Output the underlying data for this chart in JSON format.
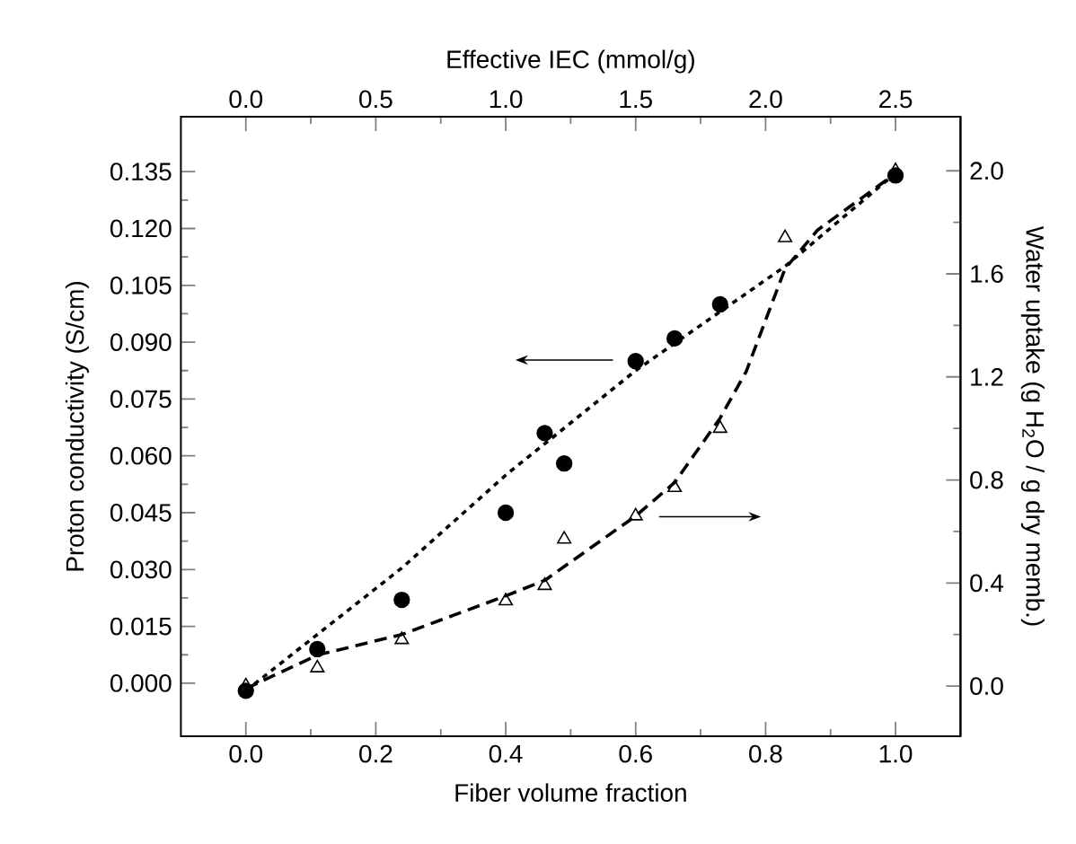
{
  "chart_data": {
    "type": "scatter",
    "xlabel": "Fiber volume fraction",
    "ylabel": "Proton conductivity (S/cm)",
    "y2label": "Water uptake (g H$_{2}$O / g dry memb.)",
    "x2label": "Effective IEC (mmol/g)",
    "xlim": [
      -0.1,
      1.1
    ],
    "ylim": [
      -0.014,
      0.1495
    ],
    "y2lim": [
      -0.195,
      2.21
    ],
    "x2lim": [
      -0.25,
      2.75
    ],
    "xticks": [
      {
        "value": 0,
        "label": "0.0"
      },
      {
        "value": 0.2,
        "label": "0.2"
      },
      {
        "value": 0.4,
        "label": "0.4"
      },
      {
        "value": 0.6,
        "label": "0.6"
      },
      {
        "value": 0.8,
        "label": "0.8"
      },
      {
        "value": 1,
        "label": "1.0"
      }
    ],
    "yticks": [
      {
        "value": 0,
        "label": "0.000"
      },
      {
        "value": 0.015,
        "label": "0.015"
      },
      {
        "value": 0.03,
        "label": "0.030"
      },
      {
        "value": 0.045,
        "label": "0.045"
      },
      {
        "value": 0.06,
        "label": "0.060"
      },
      {
        "value": 0.075,
        "label": "0.075"
      },
      {
        "value": 0.09,
        "label": "0.090"
      },
      {
        "value": 0.105,
        "label": "0.105"
      },
      {
        "value": 0.12,
        "label": "0.120"
      },
      {
        "value": 0.135,
        "label": "0.135"
      }
    ],
    "y2ticks": [
      {
        "value": 0,
        "label": "0.0"
      },
      {
        "value": 0.4,
        "label": "0.4"
      },
      {
        "value": 0.8,
        "label": "0.8"
      },
      {
        "value": 1.2,
        "label": "1.2"
      },
      {
        "value": 1.6,
        "label": "1.6"
      },
      {
        "value": 2,
        "label": "2.0"
      }
    ],
    "x2ticks": [
      {
        "value": 0,
        "label": "0.0"
      },
      {
        "value": 0.5,
        "label": "0.5"
      },
      {
        "value": 1,
        "label": "1.0"
      },
      {
        "value": 1.5,
        "label": "1.5"
      },
      {
        "value": 2,
        "label": "2.0"
      },
      {
        "value": 2.5,
        "label": "2.5"
      }
    ],
    "series": [
      {
        "marker": "circle",
        "color": "#000000",
        "x": [
          0,
          0.11,
          0.24,
          0.4,
          0.46,
          0.49,
          0.6,
          0.66,
          0.73,
          1.0
        ],
        "values": [
          -0.002,
          0.009,
          0.022,
          0.045,
          0.066,
          0.058,
          0.085,
          0.091,
          0.1,
          0.134
        ]
      },
      {
        "marker": "triangle",
        "axis": "y2",
        "color": "#000000",
        "x": [
          0,
          0.11,
          0.24,
          0.4,
          0.46,
          0.49,
          0.6,
          0.66,
          0.73,
          0.83,
          1.0
        ],
        "values": [
          0.0,
          0.07,
          0.18,
          0.33,
          0.39,
          0.57,
          0.66,
          0.77,
          1.0,
          1.74,
          2.0
        ]
      },
      {
        "type": "line",
        "marker": "none",
        "line_style": "dotted",
        "color": "#000000",
        "x": [
          0,
          0.24,
          0.4,
          0.6,
          0.83,
          1.0
        ],
        "values": [
          -0.002,
          0.0304,
          0.0549,
          0.0825,
          0.11,
          0.1346
        ]
      },
      {
        "type": "line",
        "marker": "none",
        "line_style": "dashed",
        "axis": "y2",
        "color": "#000000",
        "x": [
          0,
          0.11,
          0.24,
          0.4,
          0.46,
          0.6,
          0.66,
          0.73,
          0.77,
          0.83,
          0.88,
          1.0
        ],
        "values": [
          -0.01,
          0.12,
          0.2,
          0.35,
          0.41,
          0.66,
          0.79,
          1.04,
          1.22,
          1.62,
          1.77,
          1.99
        ]
      }
    ]
  }
}
